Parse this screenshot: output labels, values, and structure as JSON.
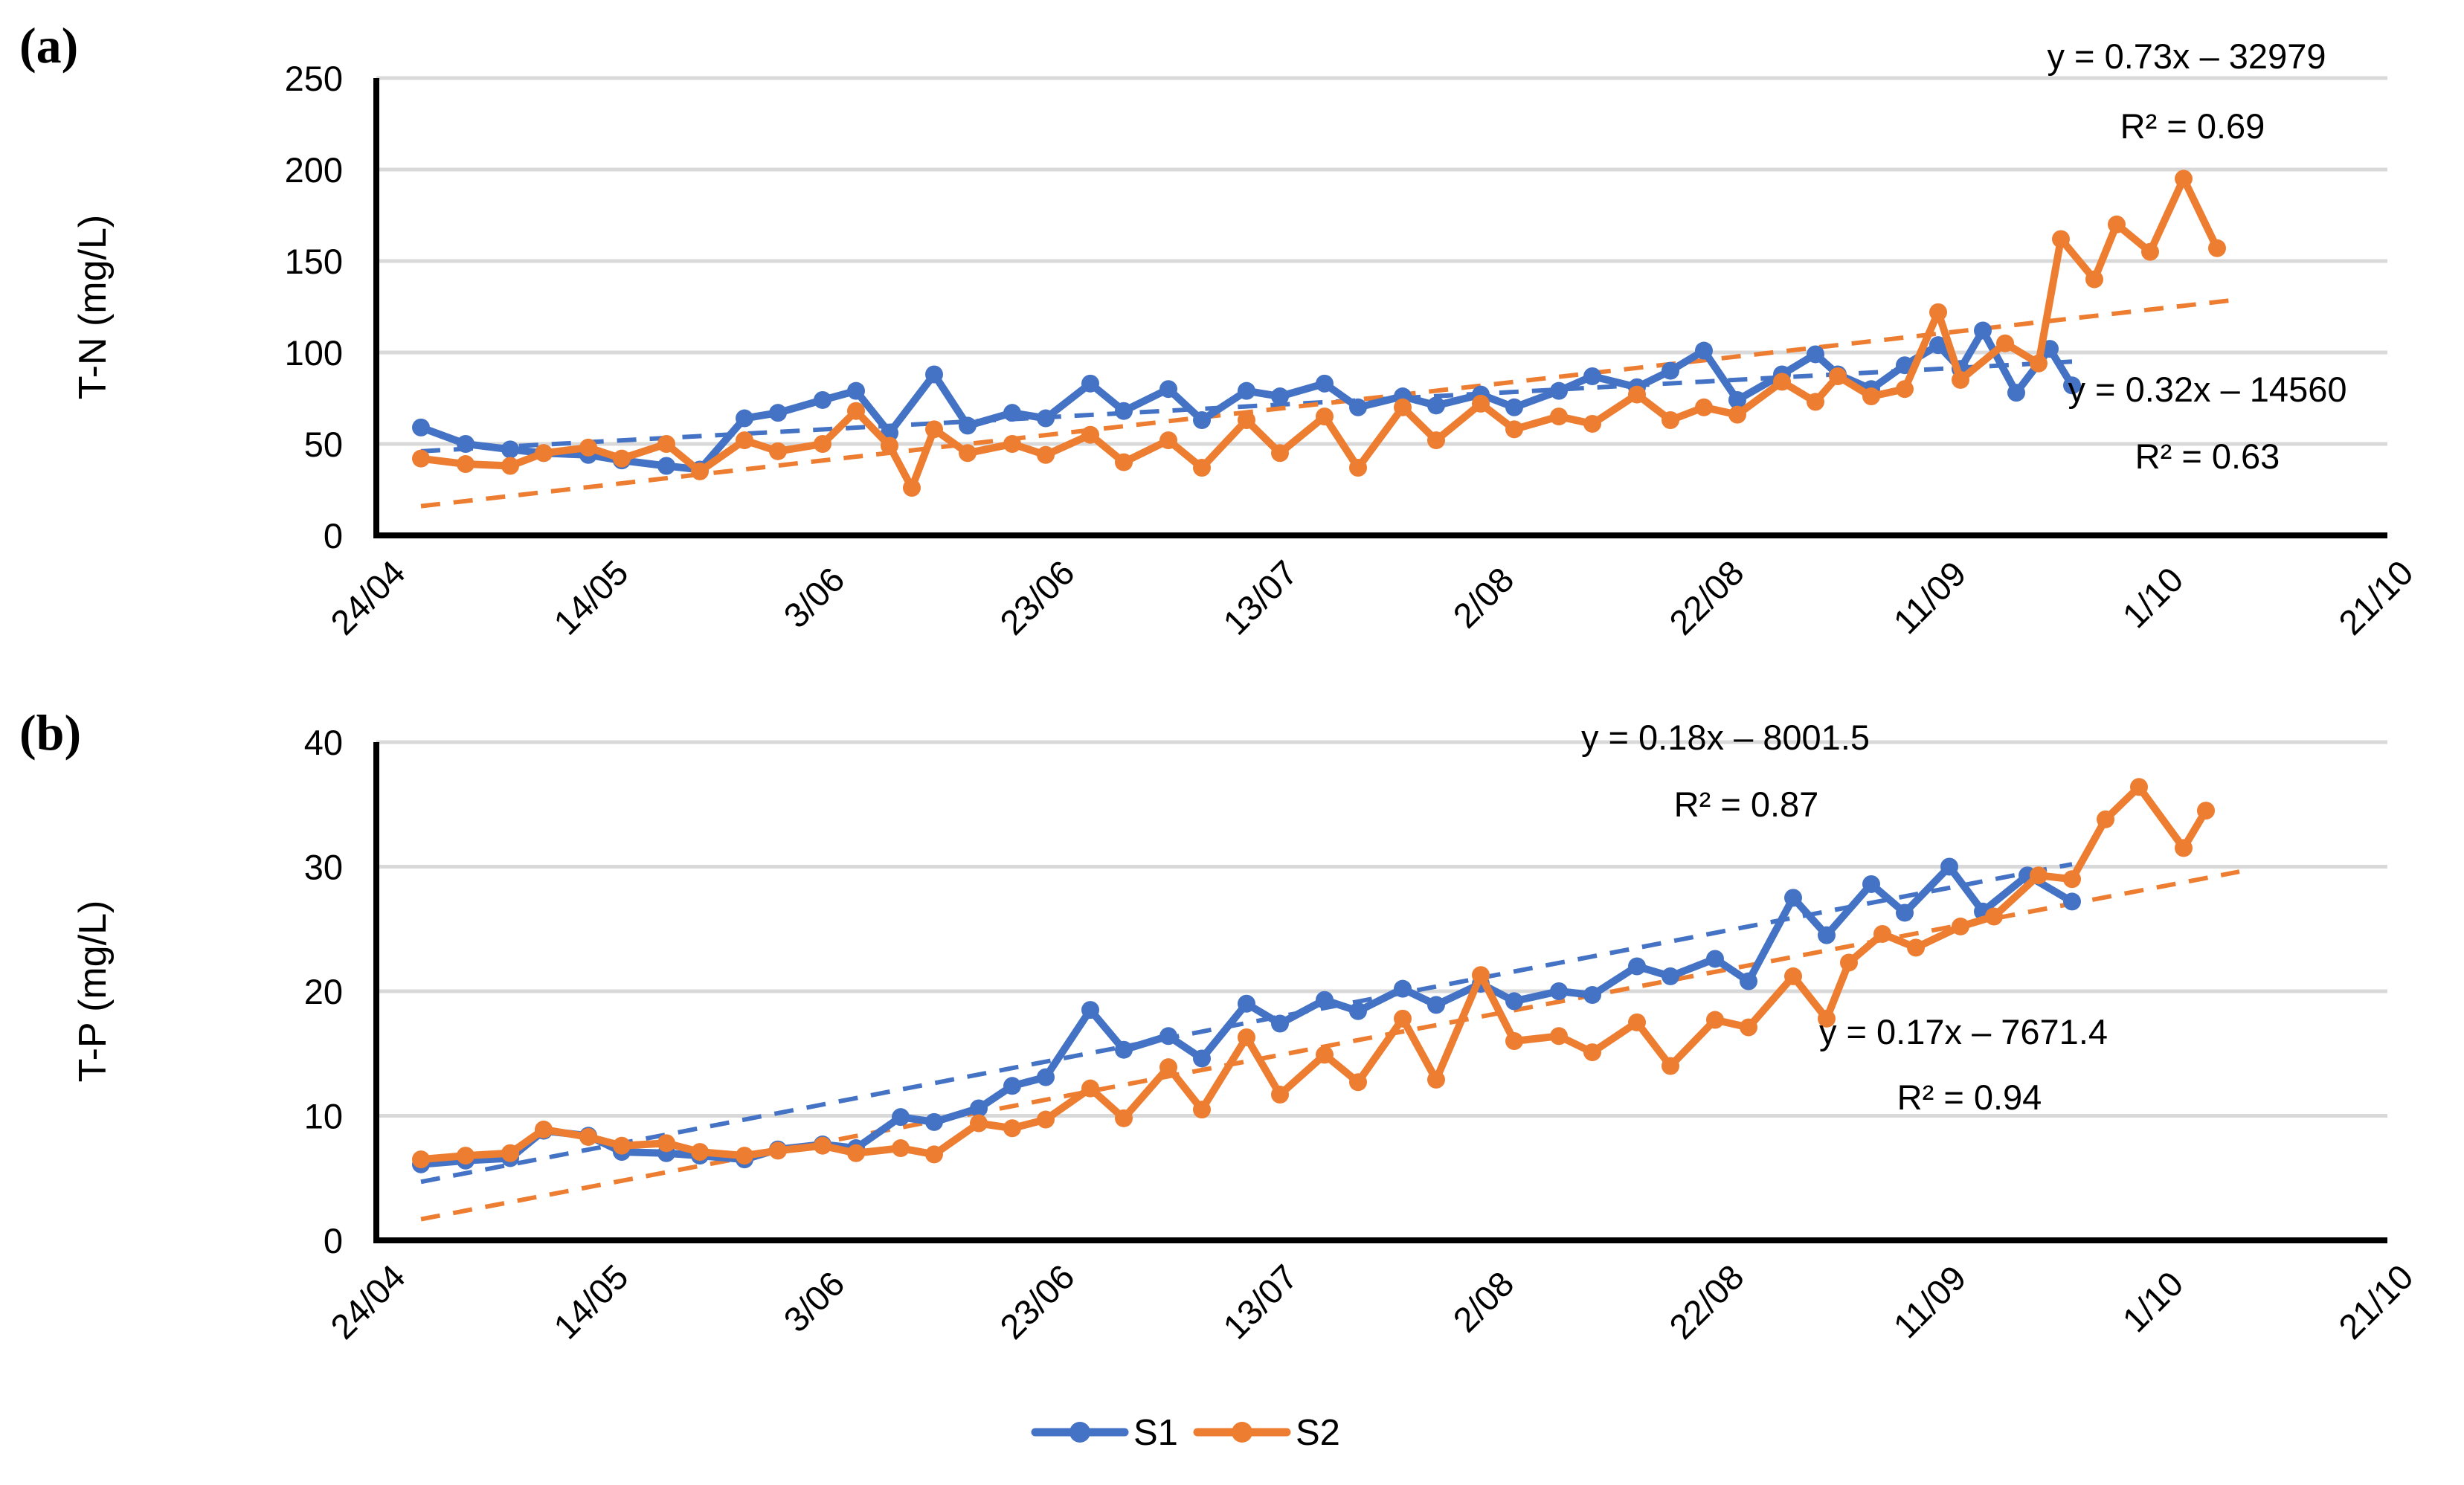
{
  "figure": {
    "type": "dual-panel scientific line chart",
    "legend": {
      "items": [
        {
          "label": "S1",
          "color": "#4472C4"
        },
        {
          "label": "S2",
          "color": "#ED7D31"
        }
      ],
      "position": "bottom-center"
    }
  },
  "chart_data": [
    {
      "id": "a",
      "type": "line",
      "panel_label": "(a)",
      "ylabel": "T-N (mg/L)",
      "ylim": [
        0,
        250
      ],
      "ytick_step": 50,
      "ytick_labels": [
        "0",
        "50",
        "100",
        "150",
        "200",
        "250"
      ],
      "xtick_labels": [
        "24/04",
        "14/05",
        "3/06",
        "23/06",
        "13/07",
        "2/08",
        "22/08",
        "11/09",
        "1/10",
        "21/10"
      ],
      "grid": true,
      "series": [
        {
          "name": "S1",
          "color": "#4472C4",
          "points": [
            [
              "28/04",
              59
            ],
            [
              "2/05",
              50
            ],
            [
              "6/05",
              47
            ],
            [
              "9/05",
              45
            ],
            [
              "13/05",
              44
            ],
            [
              "16/05",
              41
            ],
            [
              "20/05",
              38
            ],
            [
              "23/05",
              36
            ],
            [
              "27/05",
              64
            ],
            [
              "30/05",
              67
            ],
            [
              "3/06",
              74
            ],
            [
              "6/06",
              79
            ],
            [
              "9/06",
              56
            ],
            [
              "13/06",
              88
            ],
            [
              "16/06",
              60
            ],
            [
              "20/06",
              67
            ],
            [
              "23/06",
              64
            ],
            [
              "27/06",
              83
            ],
            [
              "30/06",
              68
            ],
            [
              "4/07",
              80
            ],
            [
              "7/07",
              63
            ],
            [
              "11/07",
              79
            ],
            [
              "14/07",
              76
            ],
            [
              "18/07",
              83
            ],
            [
              "21/07",
              70
            ],
            [
              "25/07",
              76
            ],
            [
              "28/07",
              71
            ],
            [
              "1/08",
              77
            ],
            [
              "4/08",
              70
            ],
            [
              "8/08",
              79
            ],
            [
              "11/08",
              87
            ],
            [
              "15/08",
              81
            ],
            [
              "18/08",
              90
            ],
            [
              "21/08",
              101
            ],
            [
              "24/08",
              74
            ],
            [
              "28/08",
              88
            ],
            [
              "31/08",
              99
            ],
            [
              "2/09",
              88
            ],
            [
              "5/09",
              80
            ],
            [
              "8/09",
              93
            ],
            [
              "11/09",
              104
            ],
            [
              "13/09",
              91
            ],
            [
              "15/09",
              112
            ],
            [
              "18/09",
              78
            ],
            [
              "21/09",
              102
            ],
            [
              "23/09",
              82
            ]
          ]
        },
        {
          "name": "S2",
          "color": "#ED7D31",
          "points": [
            [
              "28/04",
              42
            ],
            [
              "2/05",
              39
            ],
            [
              "6/05",
              38
            ],
            [
              "9/05",
              45
            ],
            [
              "13/05",
              48
            ],
            [
              "16/05",
              42
            ],
            [
              "20/05",
              50
            ],
            [
              "23/05",
              35
            ],
            [
              "27/05",
              52
            ],
            [
              "30/05",
              46
            ],
            [
              "3/06",
              50
            ],
            [
              "6/06",
              68
            ],
            [
              "9/06",
              49
            ],
            [
              "11/06",
              26
            ],
            [
              "13/06",
              58
            ],
            [
              "16/06",
              45
            ],
            [
              "20/06",
              50
            ],
            [
              "23/06",
              44
            ],
            [
              "27/06",
              55
            ],
            [
              "30/06",
              40
            ],
            [
              "4/07",
              52
            ],
            [
              "7/07",
              37
            ],
            [
              "11/07",
              63
            ],
            [
              "14/07",
              45
            ],
            [
              "18/07",
              65
            ],
            [
              "21/07",
              37
            ],
            [
              "25/07",
              70
            ],
            [
              "28/07",
              52
            ],
            [
              "1/08",
              72
            ],
            [
              "4/08",
              58
            ],
            [
              "8/08",
              65
            ],
            [
              "11/08",
              61
            ],
            [
              "15/08",
              77
            ],
            [
              "18/08",
              63
            ],
            [
              "21/08",
              70
            ],
            [
              "24/08",
              66
            ],
            [
              "28/08",
              84
            ],
            [
              "31/08",
              73
            ],
            [
              "2/09",
              87
            ],
            [
              "5/09",
              76
            ],
            [
              "8/09",
              80
            ],
            [
              "11/09",
              122
            ],
            [
              "13/09",
              85
            ],
            [
              "17/09",
              105
            ],
            [
              "20/09",
              94
            ],
            [
              "22/09",
              162
            ],
            [
              "25/09",
              140
            ],
            [
              "27/09",
              170
            ],
            [
              "30/09",
              155
            ],
            [
              "3/10",
              195
            ],
            [
              "6/10",
              157
            ]
          ]
        }
      ],
      "trendlines": [
        {
          "series": "S1",
          "equation": "y = 0.32x – 14560",
          "r2": "R² = 0.63",
          "start": [
            "28/04",
            46
          ],
          "end": [
            "23/09",
            95
          ]
        },
        {
          "series": "S2",
          "equation": "y = 0.73x – 32979",
          "r2": "R² = 0.69",
          "start": [
            "28/04",
            16
          ],
          "end": [
            "8/10",
            129
          ]
        }
      ]
    },
    {
      "id": "b",
      "type": "line",
      "panel_label": "(b)",
      "ylabel": "T-P (mg/L)",
      "ylim": [
        0,
        40
      ],
      "ytick_step": 10,
      "ytick_labels": [
        "0",
        "10",
        "20",
        "30",
        "40"
      ],
      "xtick_labels": [
        "24/04",
        "14/05",
        "3/06",
        "23/06",
        "13/07",
        "2/08",
        "22/08",
        "11/09",
        "1/10",
        "21/10"
      ],
      "grid": true,
      "series": [
        {
          "name": "S1",
          "color": "#4472C4",
          "points": [
            [
              "28/04",
              6.1
            ],
            [
              "2/05",
              6.4
            ],
            [
              "6/05",
              6.6
            ],
            [
              "9/05",
              8.8
            ],
            [
              "13/05",
              8.4
            ],
            [
              "16/05",
              7.1
            ],
            [
              "20/05",
              7.0
            ],
            [
              "23/05",
              6.8
            ],
            [
              "27/05",
              6.5
            ],
            [
              "30/05",
              7.3
            ],
            [
              "3/06",
              7.7
            ],
            [
              "6/06",
              7.4
            ],
            [
              "10/06",
              9.9
            ],
            [
              "13/06",
              9.5
            ],
            [
              "17/06",
              10.6
            ],
            [
              "20/06",
              12.4
            ],
            [
              "23/06",
              13.1
            ],
            [
              "27/06",
              18.5
            ],
            [
              "30/06",
              15.3
            ],
            [
              "4/07",
              16.4
            ],
            [
              "7/07",
              14.6
            ],
            [
              "11/07",
              19.0
            ],
            [
              "14/07",
              17.4
            ],
            [
              "18/07",
              19.3
            ],
            [
              "21/07",
              18.4
            ],
            [
              "25/07",
              20.2
            ],
            [
              "28/07",
              18.9
            ],
            [
              "1/08",
              20.6
            ],
            [
              "4/08",
              19.2
            ],
            [
              "8/08",
              20.0
            ],
            [
              "11/08",
              19.7
            ],
            [
              "15/08",
              22.0
            ],
            [
              "18/08",
              21.2
            ],
            [
              "22/08",
              22.6
            ],
            [
              "25/08",
              20.8
            ],
            [
              "29/08",
              27.5
            ],
            [
              "1/09",
              24.5
            ],
            [
              "5/09",
              28.6
            ],
            [
              "8/09",
              26.3
            ],
            [
              "12/09",
              30.0
            ],
            [
              "15/09",
              26.4
            ],
            [
              "19/09",
              29.3
            ],
            [
              "23/09",
              27.2
            ]
          ]
        },
        {
          "name": "S2",
          "color": "#ED7D31",
          "points": [
            [
              "28/04",
              6.5
            ],
            [
              "2/05",
              6.8
            ],
            [
              "6/05",
              7.0
            ],
            [
              "9/05",
              8.9
            ],
            [
              "13/05",
              8.3
            ],
            [
              "16/05",
              7.6
            ],
            [
              "20/05",
              7.8
            ],
            [
              "23/05",
              7.1
            ],
            [
              "27/05",
              6.8
            ],
            [
              "30/05",
              7.2
            ],
            [
              "3/06",
              7.6
            ],
            [
              "6/06",
              7.0
            ],
            [
              "10/06",
              7.4
            ],
            [
              "13/06",
              6.9
            ],
            [
              "17/06",
              9.4
            ],
            [
              "20/06",
              9.0
            ],
            [
              "23/06",
              9.7
            ],
            [
              "27/06",
              12.2
            ],
            [
              "30/06",
              9.8
            ],
            [
              "4/07",
              13.9
            ],
            [
              "7/07",
              10.5
            ],
            [
              "11/07",
              16.3
            ],
            [
              "14/07",
              11.7
            ],
            [
              "18/07",
              14.9
            ],
            [
              "21/07",
              12.7
            ],
            [
              "25/07",
              17.8
            ],
            [
              "28/07",
              12.9
            ],
            [
              "1/08",
              21.3
            ],
            [
              "4/08",
              16.0
            ],
            [
              "8/08",
              16.4
            ],
            [
              "11/08",
              15.1
            ],
            [
              "15/08",
              17.5
            ],
            [
              "18/08",
              14.0
            ],
            [
              "22/08",
              17.7
            ],
            [
              "25/08",
              17.1
            ],
            [
              "29/08",
              21.2
            ],
            [
              "1/09",
              17.8
            ],
            [
              "3/09",
              22.3
            ],
            [
              "6/09",
              24.6
            ],
            [
              "9/09",
              23.5
            ],
            [
              "13/09",
              25.2
            ],
            [
              "16/09",
              26.0
            ],
            [
              "20/09",
              29.3
            ],
            [
              "23/09",
              29.0
            ],
            [
              "26/09",
              33.8
            ],
            [
              "29/09",
              36.4
            ],
            [
              "3/10",
              31.5
            ],
            [
              "5/10",
              34.5
            ]
          ]
        }
      ],
      "trendlines": [
        {
          "series": "S1",
          "equation": "y = 0.17x – 7671.4",
          "r2": "R² = 0.94",
          "start": [
            "28/04",
            4.7
          ],
          "end": [
            "23/09",
            30.2
          ]
        },
        {
          "series": "S2",
          "equation": "y = 0.18x – 8001.5",
          "r2": "R² = 0.87",
          "start": [
            "28/04",
            1.7
          ],
          "end": [
            "8/10",
            29.6
          ]
        }
      ]
    }
  ]
}
